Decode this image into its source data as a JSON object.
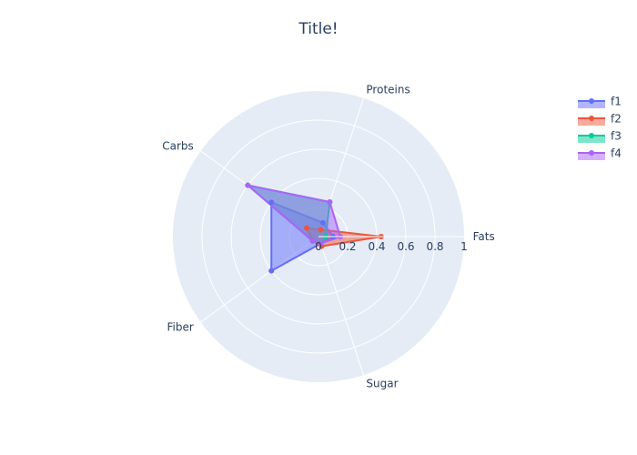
{
  "chart_data": {
    "type": "radar",
    "title": "Title!",
    "axes": [
      "Fats",
      "Proteins",
      "Carbs",
      "Fiber",
      "Sugar"
    ],
    "radial_range": [
      0,
      1
    ],
    "radial_ticks": [
      "0",
      "0.2",
      "0.4",
      "0.6",
      "0.8",
      "1"
    ],
    "radial_tick_values": [
      0,
      0.2,
      0.4,
      0.6,
      0.8,
      1
    ],
    "grid": true,
    "legend_position": "top-right",
    "series": [
      {
        "name": "f1",
        "color": "#636efa",
        "values": [
          0.1,
          0.1,
          0.4,
          0.4,
          0.05
        ]
      },
      {
        "name": "f2",
        "color": "#ef553b",
        "values": [
          0.43,
          0.05,
          0.1,
          0.05,
          0.07
        ]
      },
      {
        "name": "f3",
        "color": "#00cc96",
        "values": [
          0.05,
          0.25,
          0.6,
          0.05,
          0.05
        ]
      },
      {
        "name": "f4",
        "color": "#ab63fa",
        "values": [
          0.15,
          0.25,
          0.6,
          0.05,
          0.05
        ]
      }
    ]
  }
}
